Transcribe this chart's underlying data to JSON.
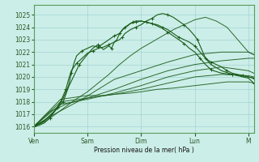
{
  "background_color": "#cceee8",
  "grid_color": "#99cccc",
  "line_color": "#1a5c1a",
  "xlabel": "Pression niveau de la mer( hPa )",
  "ylim": [
    1015.5,
    1025.8
  ],
  "yticks": [
    1016,
    1017,
    1018,
    1019,
    1020,
    1021,
    1022,
    1023,
    1024,
    1025
  ],
  "xtick_labels": [
    "Ven",
    "Sam",
    "Dim",
    "Lun",
    "M"
  ],
  "day_positions": [
    0,
    1,
    2,
    3,
    4
  ],
  "xlim": [
    0,
    4.1
  ],
  "series": [
    {
      "x": [
        0,
        0.5,
        1.0,
        1.3,
        1.5,
        1.8,
        2.0,
        2.3,
        2.6,
        2.8,
        3.0,
        3.2,
        3.4,
        3.6,
        3.8,
        4.0,
        4.1
      ],
      "y": [
        1016.0,
        1018.2,
        1018.5,
        1018.5,
        1018.6,
        1018.7,
        1018.8,
        1019.0,
        1019.1,
        1019.2,
        1019.3,
        1019.4,
        1019.5,
        1019.6,
        1019.6,
        1019.6,
        1019.5
      ]
    },
    {
      "x": [
        0,
        0.5,
        1.0,
        1.5,
        2.0,
        2.5,
        3.0,
        3.5,
        4.0,
        4.1
      ],
      "y": [
        1016.0,
        1018.0,
        1018.3,
        1018.6,
        1019.0,
        1019.5,
        1020.0,
        1020.2,
        1020.1,
        1020.0
      ]
    },
    {
      "x": [
        0,
        0.5,
        1.0,
        1.5,
        2.0,
        2.5,
        3.0,
        3.5,
        4.0,
        4.1
      ],
      "y": [
        1016.0,
        1017.8,
        1018.2,
        1018.7,
        1019.3,
        1020.0,
        1020.5,
        1020.8,
        1020.5,
        1020.3
      ]
    },
    {
      "x": [
        0,
        0.3,
        0.6,
        1.0,
        1.5,
        2.0,
        2.5,
        3.0,
        3.5,
        4.0,
        4.1
      ],
      "y": [
        1016.0,
        1017.2,
        1017.8,
        1018.3,
        1019.0,
        1019.8,
        1020.5,
        1021.0,
        1021.3,
        1021.5,
        1021.5
      ]
    },
    {
      "x": [
        0,
        0.3,
        0.6,
        0.9,
        1.2,
        1.5,
        2.0,
        2.5,
        3.0,
        3.5,
        4.0,
        4.1
      ],
      "y": [
        1016.0,
        1016.8,
        1017.5,
        1018.2,
        1019.0,
        1019.8,
        1020.5,
        1021.2,
        1021.8,
        1022.0,
        1022.0,
        1021.8
      ]
    },
    {
      "x": [
        0,
        0.25,
        0.5,
        0.75,
        1.0,
        1.2,
        1.4,
        1.6,
        1.8,
        2.0,
        2.2,
        2.4,
        2.6,
        2.8,
        3.0,
        3.2,
        3.4,
        3.6,
        3.8,
        4.0,
        4.1
      ],
      "y": [
        1016.0,
        1016.5,
        1017.3,
        1018.1,
        1018.8,
        1019.5,
        1020.2,
        1021.0,
        1021.7,
        1022.3,
        1022.8,
        1023.3,
        1023.8,
        1024.2,
        1024.6,
        1024.8,
        1024.5,
        1024.0,
        1023.0,
        1022.0,
        1021.8
      ]
    },
    {
      "x": [
        0,
        0.2,
        0.4,
        0.55,
        0.65,
        0.75,
        0.85,
        1.0,
        1.1,
        1.2,
        1.3,
        1.4,
        1.45,
        1.5,
        1.55,
        1.6,
        1.7,
        1.8,
        1.85,
        1.9,
        2.0,
        2.1,
        2.2,
        2.3,
        2.4,
        2.5,
        2.6,
        2.7,
        2.8,
        2.9,
        3.0,
        3.1,
        3.2,
        3.3,
        3.4,
        3.5,
        3.6,
        3.7,
        3.8,
        3.9,
        4.0,
        4.1
      ],
      "y": [
        1016.0,
        1016.5,
        1017.3,
        1018.0,
        1019.2,
        1020.1,
        1021.0,
        1021.8,
        1022.3,
        1022.6,
        1022.2,
        1022.5,
        1022.3,
        1022.8,
        1023.0,
        1023.5,
        1024.0,
        1024.3,
        1024.4,
        1024.5,
        1024.5,
        1024.4,
        1024.3,
        1024.2,
        1024.0,
        1023.8,
        1023.5,
        1023.2,
        1023.0,
        1022.8,
        1022.5,
        1022.0,
        1021.5,
        1021.2,
        1021.0,
        1020.8,
        1020.5,
        1020.3,
        1020.2,
        1020.1,
        1020.0,
        1019.9
      ]
    },
    {
      "x": [
        0,
        0.15,
        0.3,
        0.45,
        0.55,
        0.65,
        0.7,
        0.75,
        0.8,
        0.9,
        1.0,
        1.1,
        1.2,
        1.3,
        1.4,
        1.5,
        1.6,
        1.65,
        1.7,
        1.75,
        1.8,
        1.9,
        2.0,
        2.1,
        2.2,
        2.3,
        2.4,
        2.5,
        2.6,
        2.7,
        2.8,
        2.9,
        3.0,
        3.1,
        3.2,
        3.25,
        3.3,
        3.35,
        3.5,
        3.7,
        3.9,
        4.0,
        4.1
      ],
      "y": [
        1016.0,
        1016.3,
        1016.8,
        1017.5,
        1018.3,
        1019.3,
        1020.3,
        1021.1,
        1021.7,
        1022.1,
        1022.3,
        1022.5,
        1022.4,
        1022.7,
        1023.0,
        1023.3,
        1023.5,
        1023.8,
        1024.0,
        1024.1,
        1024.3,
        1024.4,
        1024.5,
        1024.4,
        1024.3,
        1024.1,
        1023.9,
        1023.6,
        1023.3,
        1023.0,
        1022.7,
        1022.3,
        1022.0,
        1021.5,
        1021.0,
        1020.8,
        1020.6,
        1020.5,
        1020.3,
        1020.2,
        1020.1,
        1020.0,
        1019.9
      ]
    },
    {
      "x": [
        0,
        0.1,
        0.2,
        0.3,
        0.4,
        0.5,
        0.6,
        0.65,
        0.7,
        0.8,
        0.9,
        1.0,
        1.1,
        1.2,
        1.3,
        1.4,
        1.5,
        1.6,
        1.65,
        1.7,
        1.8,
        1.9,
        2.0,
        2.1,
        2.2,
        2.3,
        2.4,
        2.5,
        2.6,
        2.7,
        2.8,
        2.9,
        3.0,
        3.05,
        3.1,
        3.15,
        3.2,
        3.3,
        3.5,
        3.7,
        3.9,
        4.0,
        4.1
      ],
      "y": [
        1016.0,
        1016.1,
        1016.3,
        1016.7,
        1017.3,
        1018.0,
        1019.0,
        1019.8,
        1020.5,
        1021.1,
        1021.5,
        1021.9,
        1022.1,
        1022.3,
        1022.4,
        1022.6,
        1022.8,
        1023.0,
        1023.2,
        1023.5,
        1023.8,
        1024.0,
        1024.2,
        1024.5,
        1024.7,
        1025.0,
        1025.1,
        1025.0,
        1024.8,
        1024.5,
        1024.2,
        1023.8,
        1023.3,
        1023.0,
        1022.5,
        1022.0,
        1021.5,
        1021.0,
        1020.5,
        1020.2,
        1020.0,
        1019.9,
        1019.5
      ]
    }
  ],
  "dotted_series_idx": [
    6,
    7,
    8
  ],
  "thin_series_idx": [
    0,
    1,
    2,
    3,
    4,
    5
  ]
}
